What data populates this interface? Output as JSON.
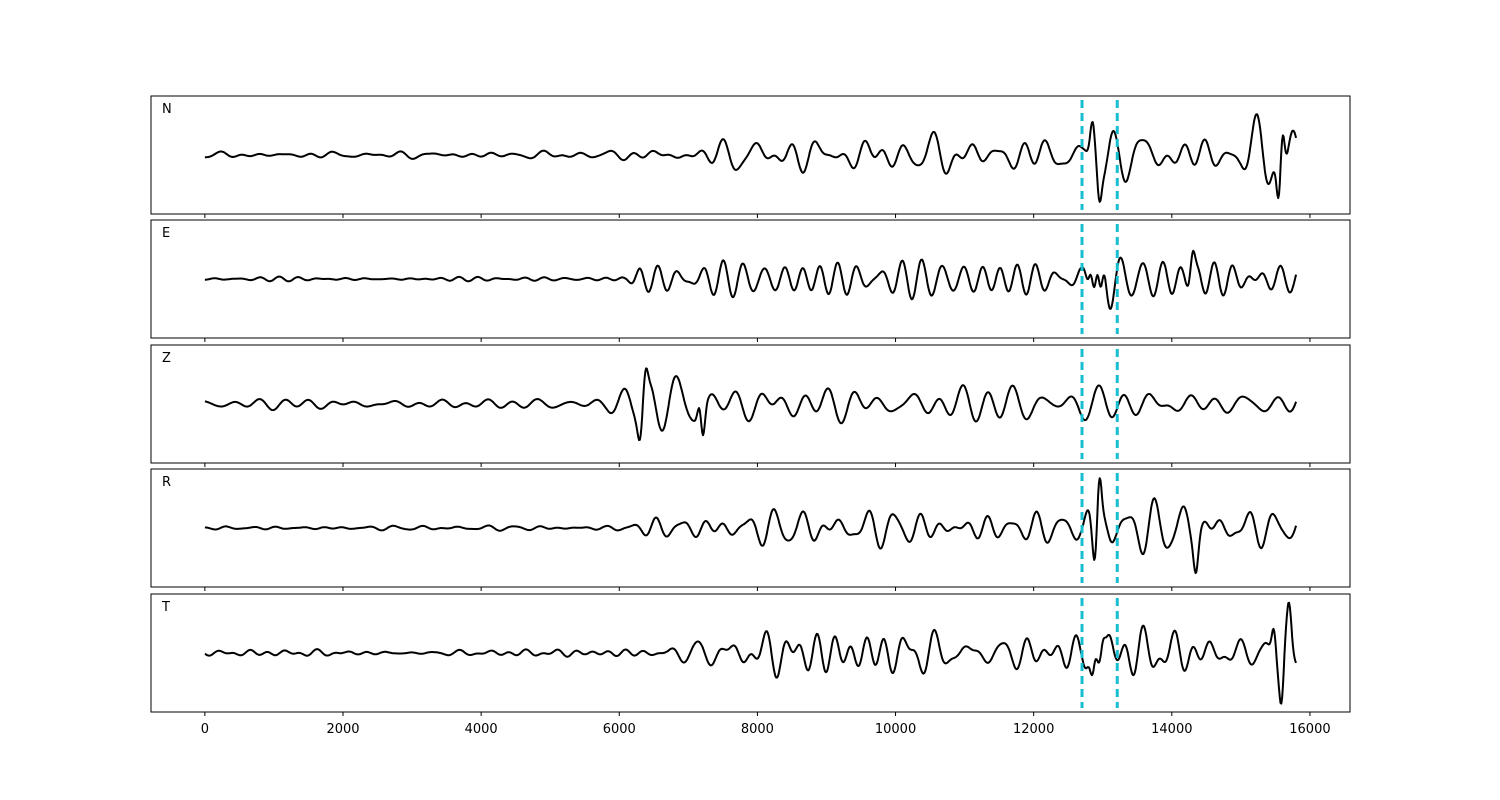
{
  "chart_data": {
    "type": "line",
    "title": "",
    "xlabel": "",
    "ylabel": "",
    "xlim": [
      -780,
      16580
    ],
    "xticks": [
      0,
      2000,
      4000,
      6000,
      8000,
      10000,
      12000,
      14000,
      16000
    ],
    "grid": false,
    "legend": "none",
    "line_color": "#000000",
    "marker_color": "#17becf",
    "markers": [
      12700,
      13210
    ],
    "signal_range": [
      0,
      15800
    ],
    "panels": [
      {
        "label": "N",
        "ylim": [
          -1.4,
          1.4
        ],
        "envelope": [
          [
            0,
            0.06
          ],
          [
            5500,
            0.08
          ],
          [
            6200,
            0.12
          ],
          [
            7000,
            0.2
          ],
          [
            7800,
            0.35
          ],
          [
            9000,
            0.4
          ],
          [
            12000,
            0.4
          ],
          [
            12700,
            0.35
          ],
          [
            12900,
            0.9
          ],
          [
            13200,
            0.5
          ],
          [
            14000,
            0.45
          ],
          [
            15000,
            0.5
          ],
          [
            15600,
            1.2
          ],
          [
            15800,
            0.6
          ]
        ],
        "spikes": [
          [
            12850,
            0.7
          ],
          [
            12950,
            -0.8
          ],
          [
            15600,
            1.25
          ],
          [
            15550,
            -0.95
          ]
        ]
      },
      {
        "label": "E",
        "ylim": [
          -1.4,
          1.4
        ],
        "envelope": [
          [
            0,
            0.04
          ],
          [
            5500,
            0.05
          ],
          [
            6100,
            0.08
          ],
          [
            6300,
            0.3
          ],
          [
            7500,
            0.4
          ],
          [
            12000,
            0.4
          ],
          [
            12700,
            0.35
          ],
          [
            12900,
            0.9
          ],
          [
            13200,
            0.6
          ],
          [
            14000,
            0.55
          ],
          [
            15000,
            0.45
          ],
          [
            15800,
            0.35
          ]
        ],
        "spikes": [
          [
            12830,
            0.8
          ],
          [
            12970,
            -1.1
          ],
          [
            14300,
            0.65
          ]
        ]
      },
      {
        "label": "Z",
        "ylim": [
          -1.4,
          1.4
        ],
        "envelope": [
          [
            0,
            0.08
          ],
          [
            1500,
            0.15
          ],
          [
            5800,
            0.12
          ],
          [
            6200,
            0.3
          ],
          [
            6500,
            0.55
          ],
          [
            7100,
            0.9
          ],
          [
            7500,
            0.5
          ],
          [
            9000,
            0.45
          ],
          [
            12000,
            0.4
          ],
          [
            13200,
            0.35
          ],
          [
            14500,
            0.3
          ],
          [
            15800,
            0.28
          ]
        ],
        "spikes": [
          [
            7180,
            0.95
          ],
          [
            7200,
            -1.25
          ],
          [
            6380,
            0.6
          ],
          [
            6300,
            -0.55
          ]
        ]
      },
      {
        "label": "R",
        "ylim": [
          -1.4,
          1.4
        ],
        "envelope": [
          [
            0,
            0.04
          ],
          [
            5800,
            0.05
          ],
          [
            6100,
            0.12
          ],
          [
            6500,
            0.25
          ],
          [
            9000,
            0.35
          ],
          [
            12000,
            0.35
          ],
          [
            12700,
            0.3
          ],
          [
            12900,
            1.0
          ],
          [
            13200,
            0.5
          ],
          [
            14000,
            0.45
          ],
          [
            15000,
            0.4
          ],
          [
            15800,
            0.3
          ]
        ],
        "spikes": [
          [
            12950,
            1.25
          ],
          [
            12880,
            -0.7
          ],
          [
            14350,
            -0.65
          ]
        ]
      },
      {
        "label": "T",
        "ylim": [
          -1.4,
          1.4
        ],
        "envelope": [
          [
            0,
            0.06
          ],
          [
            5500,
            0.07
          ],
          [
            6700,
            0.15
          ],
          [
            7200,
            0.35
          ],
          [
            8000,
            0.5
          ],
          [
            12000,
            0.45
          ],
          [
            12700,
            0.4
          ],
          [
            12900,
            0.8
          ],
          [
            13200,
            0.45
          ],
          [
            14500,
            0.45
          ],
          [
            15300,
            0.5
          ],
          [
            15500,
            1.0
          ],
          [
            15800,
            0.8
          ]
        ],
        "spikes": [
          [
            12850,
            -0.75
          ],
          [
            13000,
            0.55
          ],
          [
            15480,
            0.9
          ],
          [
            15590,
            -1.2
          ],
          [
            15700,
            0.8
          ]
        ]
      }
    ]
  }
}
